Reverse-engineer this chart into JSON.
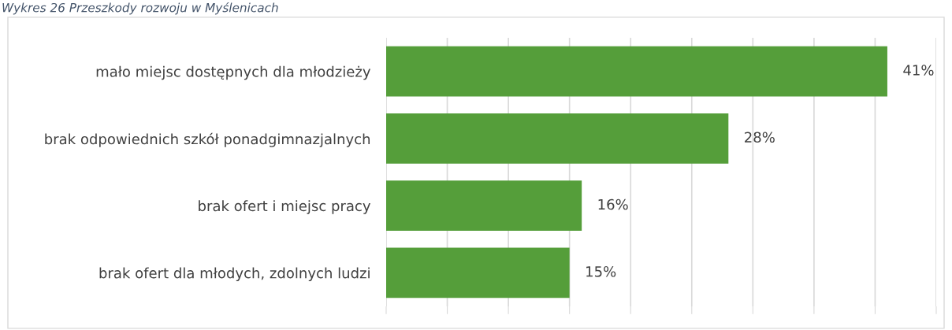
{
  "chart_data": {
    "type": "bar",
    "orientation": "horizontal",
    "title": "Wykres 26 Przeszkody rozwoju w Myślenicach",
    "categories": [
      "mało miejsc dostępnych dla młodzieży",
      "brak odpowiednich szkół ponadgimnazjalnych",
      "brak ofert i miejsc pracy",
      "brak ofert dla młodych, zdolnych ludzi"
    ],
    "values": [
      41,
      28,
      16,
      15
    ],
    "value_labels": [
      "41%",
      "28%",
      "16%",
      "15%"
    ],
    "color": "#559e3a",
    "xlim": [
      0,
      45
    ],
    "xticks": [
      {
        "value": 0,
        "label": null
      },
      {
        "value": 5,
        "label": null
      },
      {
        "value": 10,
        "label": null
      },
      {
        "value": 15,
        "label": null
      },
      {
        "value": 20,
        "label": null
      },
      {
        "value": 25,
        "label": null
      },
      {
        "value": 30,
        "label": null
      },
      {
        "value": 35,
        "label": null
      },
      {
        "value": 40,
        "label": null
      },
      {
        "value": 45,
        "label": null
      }
    ],
    "grid": "x",
    "tick_labels": "y"
  }
}
